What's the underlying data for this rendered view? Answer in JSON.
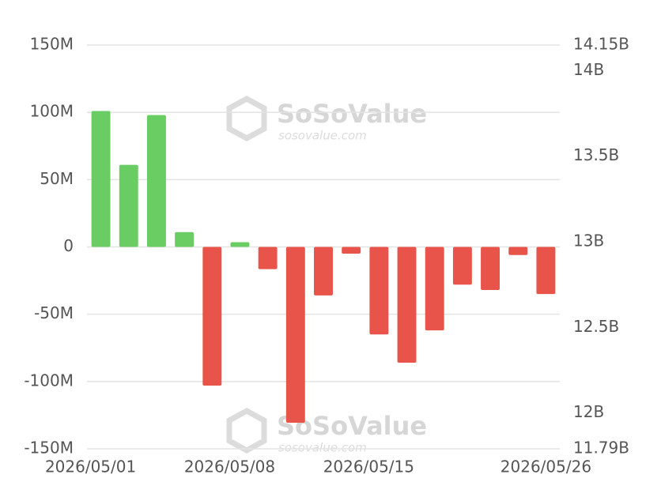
{
  "chart_data": {
    "type": "bar",
    "categories": [
      "2026/05/01",
      null,
      null,
      null,
      null,
      "2026/05/08",
      null,
      null,
      null,
      null,
      "2026/05/15",
      null,
      null,
      null,
      null,
      null,
      "2026/05/26"
    ],
    "values": [
      101,
      61,
      98,
      11,
      -103,
      3.5,
      -16.5,
      -130.6,
      -36,
      -5,
      -65,
      -86,
      -62,
      -28,
      -32,
      -6,
      -35
    ],
    "positive_color": "#6acd63",
    "negative_color": "#e8544a",
    "ylim": [
      -150,
      150
    ],
    "yticks": [
      {
        "value": -150,
        "label": "-150M"
      },
      {
        "value": -100,
        "label": "-100M"
      },
      {
        "value": -50,
        "label": "-50M"
      },
      0,
      {
        "value": 50,
        "label": "50M"
      },
      {
        "value": 100,
        "label": "100M"
      },
      {
        "value": 150,
        "label": "150M"
      }
    ],
    "y2lim": [
      11.79,
      14.15
    ],
    "y2ticks": [
      {
        "value": 11.79,
        "label": "11.79B"
      },
      {
        "value": 12,
        "label": "12B"
      },
      {
        "value": 12.5,
        "label": "12.5B"
      },
      {
        "value": 13,
        "label": "13B"
      },
      {
        "value": 13.5,
        "label": "13.5B"
      },
      {
        "value": 14,
        "label": "14B"
      },
      {
        "value": 14.15,
        "label": "14.15B"
      }
    ],
    "grid": true,
    "watermark": {
      "name": "SoSoValue",
      "url": "sosovalue.com"
    }
  }
}
